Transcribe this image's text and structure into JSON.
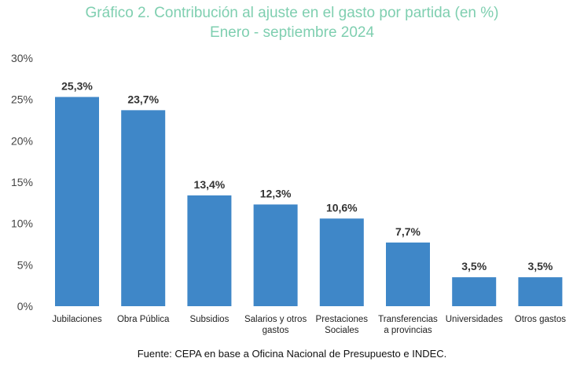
{
  "chart_data": {
    "type": "bar",
    "title": "Gráfico 2. Contribución al ajuste en el gasto por partida (en %)",
    "subtitle": "Enero - septiembre 2024",
    "categories": [
      [
        "Jubilaciones"
      ],
      [
        "Obra Pública"
      ],
      [
        "Subsidios"
      ],
      [
        "Salarios y otros",
        "gastos"
      ],
      [
        "Prestaciones",
        "Sociales"
      ],
      [
        "Transferencias",
        "a provincias"
      ],
      [
        "Universidades"
      ],
      [
        "Otros gastos"
      ]
    ],
    "values": [
      25.3,
      23.7,
      13.4,
      12.3,
      10.6,
      7.7,
      3.5,
      3.5
    ],
    "data_labels": [
      "25,3%",
      "23,7%",
      "13,4%",
      "12,3%",
      "10,6%",
      "7,7%",
      "3,5%",
      "3,5%"
    ],
    "yticks": [
      "0%",
      "5%",
      "10%",
      "15%",
      "20%",
      "25%",
      "30%"
    ],
    "ylim": [
      0,
      30
    ],
    "grid": false,
    "bar_color": "#3f87c8",
    "title_color": "#7fcfb0"
  },
  "source": "Fuente: CEPA en base a Oficina Nacional de Presupuesto e INDEC."
}
